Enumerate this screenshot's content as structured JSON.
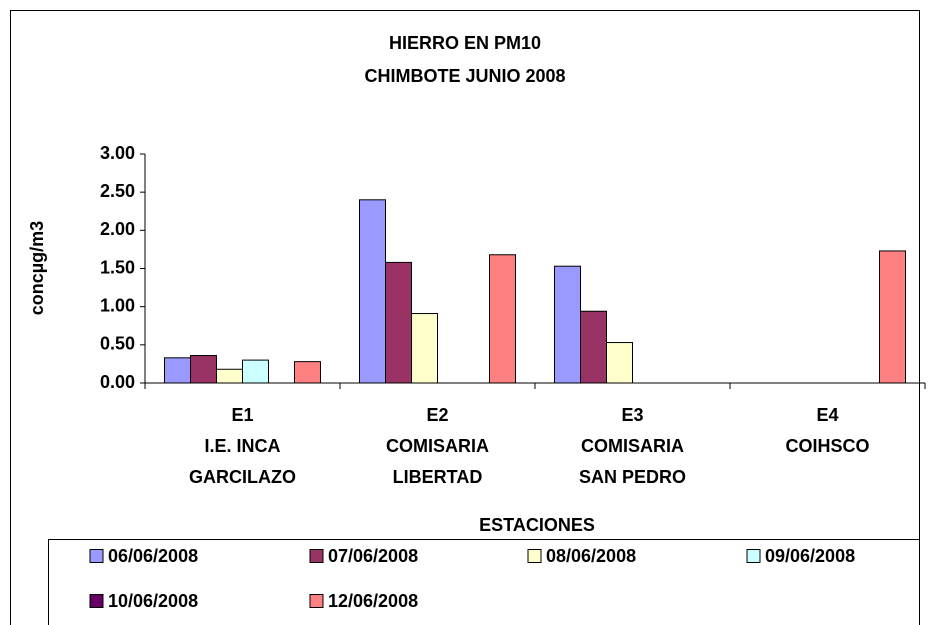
{
  "chart_data": {
    "type": "bar",
    "title": "HIERRO EN PM10",
    "subtitle": "CHIMBOTE JUNIO 2008",
    "y_label": "concµg/m3",
    "x_label": "ESTACIONES",
    "categories": [
      [
        "E1",
        "I.E. INCA",
        "GARCILAZO"
      ],
      [
        "E2",
        "COMISARIA",
        "LIBERTAD"
      ],
      [
        "E3",
        "COMISARIA",
        "SAN PEDRO"
      ],
      [
        "E4",
        "COIHSCO"
      ]
    ],
    "series": [
      {
        "name": "06/06/2008",
        "color": "#9999ff",
        "values": [
          0.33,
          2.4,
          1.53,
          null
        ]
      },
      {
        "name": "07/06/2008",
        "color": "#993366",
        "values": [
          0.36,
          1.58,
          0.94,
          null
        ]
      },
      {
        "name": "08/06/2008",
        "color": "#ffffcc",
        "values": [
          0.18,
          0.91,
          0.53,
          null
        ]
      },
      {
        "name": "09/06/2008",
        "color": "#ccffff",
        "values": [
          0.3,
          null,
          null,
          null
        ]
      },
      {
        "name": "10/06/2008",
        "color": "#660066",
        "values": [
          null,
          null,
          null,
          null
        ]
      },
      {
        "name": "12/06/2008",
        "color": "#ff8080",
        "values": [
          0.28,
          1.68,
          null,
          1.73
        ]
      }
    ],
    "ylim": [
      0,
      3
    ],
    "yticks": [
      {
        "value": 0,
        "label": "0.00"
      },
      {
        "value": 0.5,
        "label": "0.50"
      },
      {
        "value": 1,
        "label": "1.00"
      },
      {
        "value": 1.5,
        "label": "1.50"
      },
      {
        "value": 2,
        "label": "2.00"
      },
      {
        "value": 2.5,
        "label": "2.50"
      },
      {
        "value": 3,
        "label": "3.00"
      }
    ],
    "grid": false
  }
}
